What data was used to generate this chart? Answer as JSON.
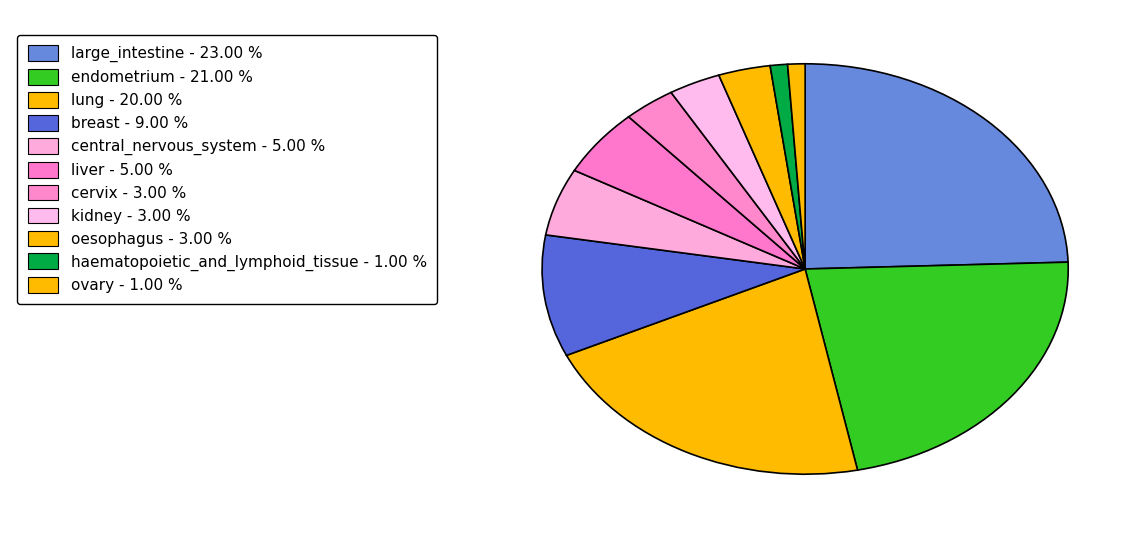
{
  "labels": [
    "large_intestine - 23.00 %",
    "endometrium - 21.00 %",
    "lung - 20.00 %",
    "breast - 9.00 %",
    "central_nervous_system - 5.00 %",
    "liver - 5.00 %",
    "cervix - 3.00 %",
    "kidney - 3.00 %",
    "oesophagus - 3.00 %",
    "haematopoietic_and_lymphoid_tissue - 1.00 %",
    "ovary - 1.00 %"
  ],
  "values": [
    23,
    21,
    20,
    9,
    5,
    5,
    3,
    3,
    3,
    1,
    1
  ],
  "colors": [
    "#6688dd",
    "#33cc22",
    "#ffbb00",
    "#5566dd",
    "#ffaadd",
    "#ff77cc",
    "#ff88cc",
    "#ffbbee",
    "#ffbb00",
    "#00aa44",
    "#ffbb00"
  ],
  "startangle": 90,
  "background_color": "#ffffff",
  "legend_fontsize": 11,
  "figsize": [
    11.34,
    5.38
  ],
  "dpi": 100
}
